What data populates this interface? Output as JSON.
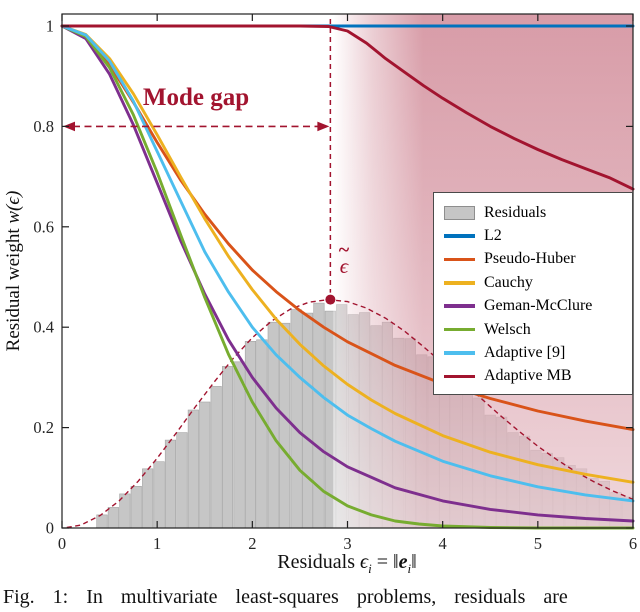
{
  "figure": {
    "caption_prefix": "Fig. 1:",
    "caption_text": "In multivariate least-squares problems, residuals are"
  },
  "labels": {
    "ylabel_prefix": "Residual weight ",
    "ylabel_math": "w(ϵ)",
    "xlabel_prefix": "Residuals ",
    "eps": "ϵ",
    "sub_i": "i",
    "eq": " = ‖",
    "e_vec": "e",
    "norm_close": "‖",
    "mode_gap": "Mode gap",
    "epsilon_tilde_accent": "~",
    "epsilon_tilde_base": "ϵ"
  },
  "colors": {
    "annotation": "#A2142F",
    "axis": "#1f1f1f",
    "histogram": "#c6c6c6"
  },
  "chart_data": {
    "type": "line",
    "title": "",
    "xlabel": "Residuals ϵi = ‖ei‖",
    "ylabel": "Residual weight w(ϵ)",
    "xlim": [
      0,
      6
    ],
    "ylim": [
      0,
      1
    ],
    "x_ticks": [
      0,
      1,
      2,
      3,
      4,
      5,
      6
    ],
    "y_ticks": [
      0,
      0.2,
      0.4,
      0.6,
      0.8,
      1
    ],
    "grid": false,
    "legend_position": "right-middle",
    "annotation_color": "#A2142F",
    "shaded_region": {
      "x_start": 2.85,
      "x_end": 6,
      "color": "#A2142F",
      "max_opacity": 0.42
    },
    "mode_gap": {
      "y": 0.8,
      "x_start": 0,
      "x_end": 2.82,
      "label": "Mode gap"
    },
    "mode_marker": {
      "x": 2.82,
      "y": 0.455,
      "label": "ϵ̃"
    },
    "histogram": {
      "name": "Residuals",
      "color": "#c6c6c6",
      "bin_width": 0.12,
      "bars": [
        [
          0.42,
          0.026
        ],
        [
          0.54,
          0.041
        ],
        [
          0.66,
          0.068
        ],
        [
          0.78,
          0.083
        ],
        [
          0.9,
          0.118
        ],
        [
          1.02,
          0.132
        ],
        [
          1.14,
          0.175
        ],
        [
          1.26,
          0.19
        ],
        [
          1.38,
          0.235
        ],
        [
          1.5,
          0.251
        ],
        [
          1.62,
          0.282
        ],
        [
          1.74,
          0.322
        ],
        [
          1.86,
          0.331
        ],
        [
          1.98,
          0.372
        ],
        [
          2.1,
          0.375
        ],
        [
          2.22,
          0.41
        ],
        [
          2.34,
          0.408
        ],
        [
          2.46,
          0.435
        ],
        [
          2.58,
          0.428
        ],
        [
          2.7,
          0.448
        ],
        [
          2.82,
          0.432
        ],
        [
          2.94,
          0.445
        ],
        [
          3.06,
          0.425
        ],
        [
          3.18,
          0.429
        ],
        [
          3.3,
          0.403
        ],
        [
          3.42,
          0.41
        ],
        [
          3.54,
          0.378
        ],
        [
          3.66,
          0.377
        ],
        [
          3.78,
          0.345
        ],
        [
          3.9,
          0.341
        ],
        [
          4.02,
          0.305
        ],
        [
          4.14,
          0.3
        ],
        [
          4.26,
          0.268
        ],
        [
          4.38,
          0.259
        ],
        [
          4.5,
          0.225
        ],
        [
          4.62,
          0.221
        ],
        [
          4.74,
          0.19
        ],
        [
          4.86,
          0.183
        ],
        [
          4.98,
          0.155
        ],
        [
          5.1,
          0.149
        ],
        [
          5.22,
          0.14
        ],
        [
          5.34,
          0.125
        ],
        [
          5.46,
          0.118
        ],
        [
          5.58,
          0.099
        ],
        [
          5.7,
          0.093
        ],
        [
          5.82,
          0.071
        ],
        [
          5.94,
          0.062
        ]
      ]
    },
    "density_curve": {
      "color": "#A2142F",
      "style": "dashed",
      "points": [
        [
          0.05,
          0.001
        ],
        [
          0.2,
          0.006
        ],
        [
          0.4,
          0.025
        ],
        [
          0.6,
          0.054
        ],
        [
          0.8,
          0.093
        ],
        [
          1.0,
          0.139
        ],
        [
          1.2,
          0.189
        ],
        [
          1.4,
          0.241
        ],
        [
          1.6,
          0.291
        ],
        [
          1.8,
          0.338
        ],
        [
          2.0,
          0.379
        ],
        [
          2.2,
          0.412
        ],
        [
          2.4,
          0.436
        ],
        [
          2.6,
          0.45
        ],
        [
          2.8,
          0.455
        ],
        [
          3.0,
          0.451
        ],
        [
          3.2,
          0.438
        ],
        [
          3.4,
          0.418
        ],
        [
          3.6,
          0.392
        ],
        [
          3.8,
          0.361
        ],
        [
          4.0,
          0.328
        ],
        [
          4.2,
          0.293
        ],
        [
          4.4,
          0.259
        ],
        [
          4.6,
          0.225
        ],
        [
          4.8,
          0.193
        ],
        [
          5.0,
          0.163
        ],
        [
          5.2,
          0.136
        ],
        [
          5.4,
          0.112
        ],
        [
          5.6,
          0.091
        ],
        [
          5.8,
          0.073
        ],
        [
          6.0,
          0.057
        ]
      ]
    },
    "series": [
      {
        "name": "L2",
        "color": "#0072BD",
        "points": [
          [
            0,
            1
          ],
          [
            6,
            1
          ]
        ]
      },
      {
        "name": "Pseudo-Huber",
        "color": "#D95319",
        "points": [
          [
            0,
            1
          ],
          [
            0.25,
            0.979
          ],
          [
            0.5,
            0.923
          ],
          [
            0.75,
            0.848
          ],
          [
            1,
            0.768
          ],
          [
            1.25,
            0.692
          ],
          [
            1.5,
            0.625
          ],
          [
            1.75,
            0.566
          ],
          [
            2,
            0.514
          ],
          [
            2.25,
            0.471
          ],
          [
            2.5,
            0.433
          ],
          [
            2.75,
            0.4
          ],
          [
            3,
            0.371
          ],
          [
            3.5,
            0.324
          ],
          [
            4,
            0.287
          ],
          [
            4.5,
            0.258
          ],
          [
            5,
            0.233
          ],
          [
            5.5,
            0.213
          ],
          [
            6,
            0.196
          ]
        ]
      },
      {
        "name": "Cauchy",
        "color": "#EDB120",
        "points": [
          [
            0,
            1
          ],
          [
            0.25,
            0.983
          ],
          [
            0.5,
            0.935
          ],
          [
            0.75,
            0.865
          ],
          [
            1,
            0.783
          ],
          [
            1.25,
            0.698
          ],
          [
            1.5,
            0.616
          ],
          [
            1.75,
            0.541
          ],
          [
            2,
            0.475
          ],
          [
            2.25,
            0.416
          ],
          [
            2.5,
            0.366
          ],
          [
            2.75,
            0.323
          ],
          [
            3,
            0.286
          ],
          [
            3.25,
            0.255
          ],
          [
            3.5,
            0.228
          ],
          [
            4,
            0.184
          ],
          [
            4.5,
            0.151
          ],
          [
            5,
            0.126
          ],
          [
            5.5,
            0.107
          ],
          [
            6,
            0.091
          ]
        ]
      },
      {
        "name": "Geman-McClure",
        "color": "#7E2F8E",
        "points": [
          [
            0,
            1
          ],
          [
            0.25,
            0.975
          ],
          [
            0.5,
            0.904
          ],
          [
            0.75,
            0.803
          ],
          [
            1,
            0.687
          ],
          [
            1.25,
            0.571
          ],
          [
            1.5,
            0.466
          ],
          [
            1.75,
            0.375
          ],
          [
            2,
            0.3
          ],
          [
            2.25,
            0.239
          ],
          [
            2.5,
            0.19
          ],
          [
            2.75,
            0.152
          ],
          [
            3,
            0.122
          ],
          [
            3.5,
            0.08
          ],
          [
            4,
            0.054
          ],
          [
            4.5,
            0.037
          ],
          [
            5,
            0.026
          ],
          [
            5.5,
            0.019
          ],
          [
            6,
            0.014
          ]
        ]
      },
      {
        "name": "Welsch",
        "color": "#77AC30",
        "points": [
          [
            0,
            1
          ],
          [
            0.25,
            0.979
          ],
          [
            0.5,
            0.917
          ],
          [
            0.75,
            0.823
          ],
          [
            1,
            0.708
          ],
          [
            1.25,
            0.582
          ],
          [
            1.5,
            0.459
          ],
          [
            1.75,
            0.346
          ],
          [
            2,
            0.251
          ],
          [
            2.25,
            0.174
          ],
          [
            2.5,
            0.115
          ],
          [
            2.75,
            0.073
          ],
          [
            3,
            0.044
          ],
          [
            3.25,
            0.026
          ],
          [
            3.5,
            0.014
          ],
          [
            3.75,
            0.008
          ],
          [
            4,
            0.004
          ],
          [
            4.5,
            0.001
          ],
          [
            5,
            0
          ],
          [
            6,
            0
          ]
        ]
      },
      {
        "name": "Adaptive [9]",
        "color": "#4DBEEE",
        "points": [
          [
            0,
            1
          ],
          [
            0.25,
            0.982
          ],
          [
            0.5,
            0.93
          ],
          [
            0.75,
            0.85
          ],
          [
            1,
            0.75
          ],
          [
            1.25,
            0.65
          ],
          [
            1.5,
            0.55
          ],
          [
            1.75,
            0.47
          ],
          [
            2,
            0.4
          ],
          [
            2.25,
            0.345
          ],
          [
            2.5,
            0.3
          ],
          [
            2.75,
            0.26
          ],
          [
            3,
            0.225
          ],
          [
            3.25,
            0.198
          ],
          [
            3.5,
            0.173
          ],
          [
            4,
            0.133
          ],
          [
            4.5,
            0.104
          ],
          [
            5,
            0.082
          ],
          [
            5.5,
            0.066
          ],
          [
            6,
            0.054
          ]
        ]
      },
      {
        "name": "Adaptive MB",
        "color": "#A2142F",
        "points": [
          [
            0,
            1
          ],
          [
            1,
            1
          ],
          [
            2,
            1
          ],
          [
            2.5,
            1
          ],
          [
            2.8,
            0.999
          ],
          [
            3,
            0.99
          ],
          [
            3.2,
            0.966
          ],
          [
            3.4,
            0.935
          ],
          [
            3.6,
            0.908
          ],
          [
            3.8,
            0.881
          ],
          [
            4,
            0.856
          ],
          [
            4.25,
            0.827
          ],
          [
            4.5,
            0.8
          ],
          [
            4.75,
            0.776
          ],
          [
            5,
            0.754
          ],
          [
            5.25,
            0.734
          ],
          [
            5.5,
            0.716
          ],
          [
            5.75,
            0.698
          ],
          [
            6,
            0.675
          ]
        ]
      }
    ]
  }
}
